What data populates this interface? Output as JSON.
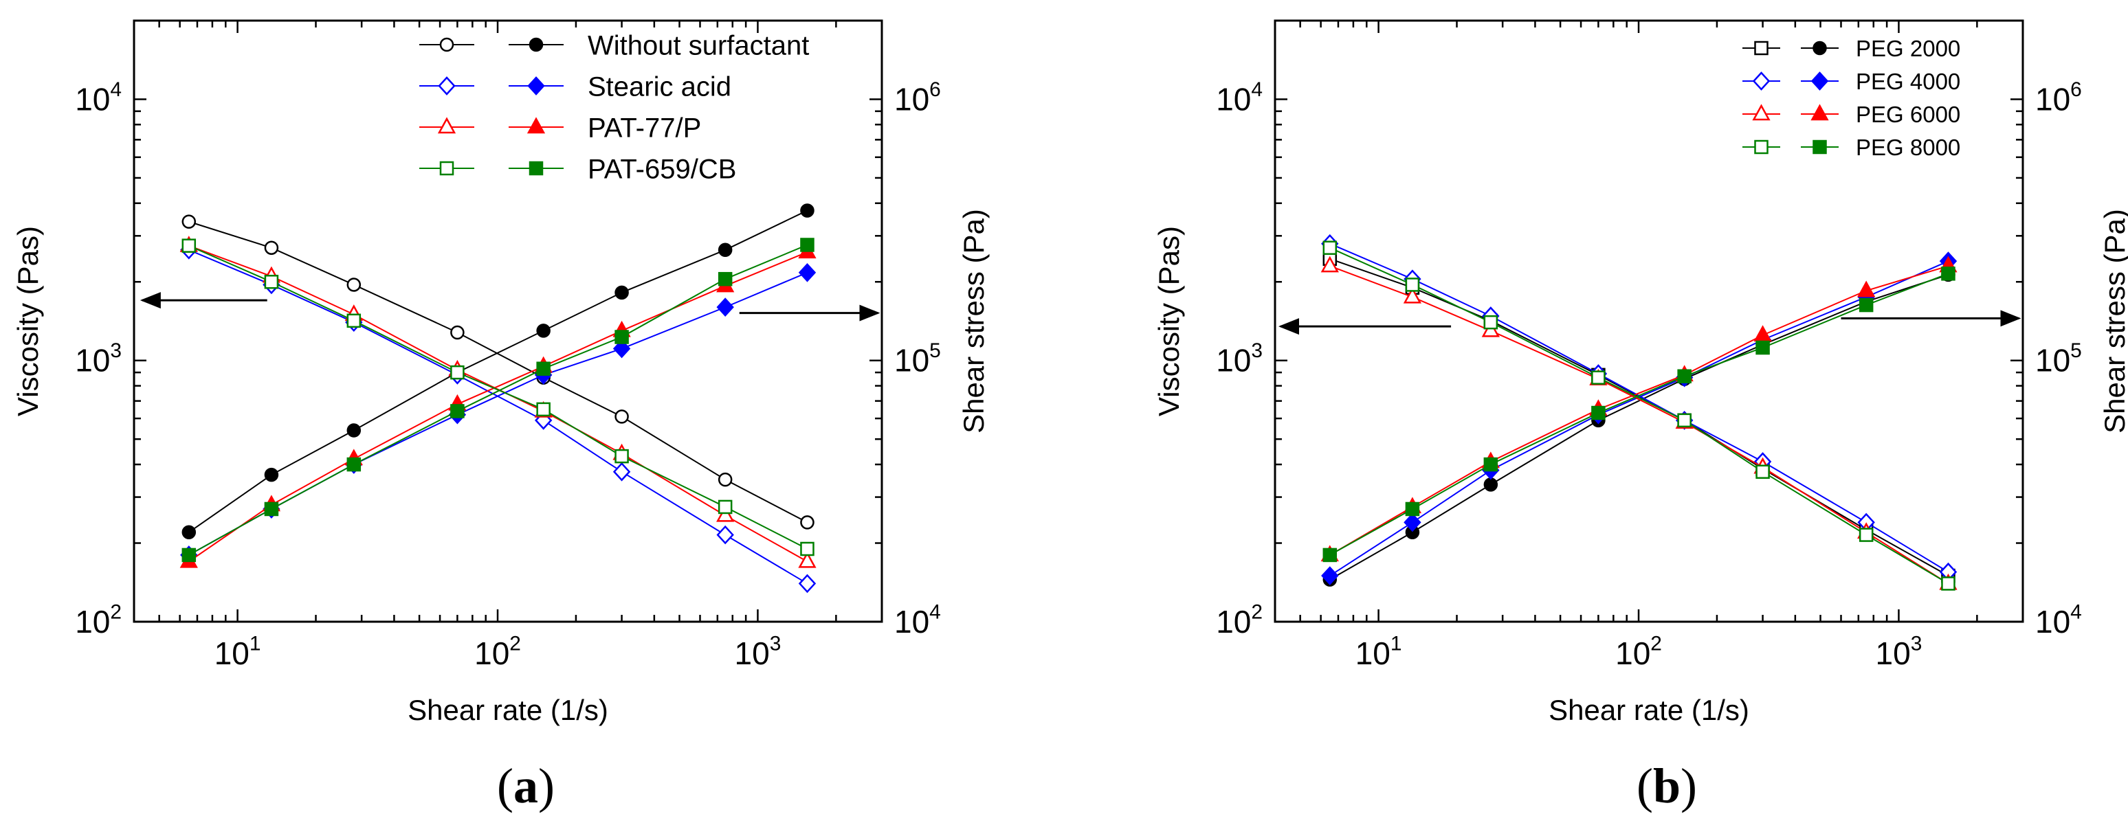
{
  "figure": {
    "panel_labels": [
      {
        "open": "(",
        "letter": "a",
        "close": ")"
      },
      {
        "open": "(",
        "letter": "b",
        "close": ")"
      }
    ]
  },
  "chart_data": [
    {
      "type": "line",
      "panel": "a",
      "xlabel": "Shear rate (1/s)",
      "ylabel": "Viscosity (Pas)",
      "y2label": "Shear stress (Pa)",
      "xscale": "log",
      "yscale": "log",
      "y2scale": "log",
      "xlim": [
        4,
        3000
      ],
      "ylim": [
        100,
        20000
      ],
      "y2lim": [
        10000,
        2000000
      ],
      "xticks": [
        {
          "value": 10,
          "base": "10",
          "exp": "1"
        },
        {
          "value": 100,
          "base": "10",
          "exp": "2"
        },
        {
          "value": 1000,
          "base": "10",
          "exp": "3"
        }
      ],
      "yticks": [
        {
          "value": 100,
          "base": "10",
          "exp": "2"
        },
        {
          "value": 1000,
          "base": "10",
          "exp": "3"
        },
        {
          "value": 10000,
          "base": "10",
          "exp": "4"
        }
      ],
      "y2ticks": [
        {
          "value": 10000,
          "base": "10",
          "exp": "4"
        },
        {
          "value": 100000,
          "base": "10",
          "exp": "5"
        },
        {
          "value": 1000000,
          "base": "10",
          "exp": "6"
        }
      ],
      "legend_position": "top-right",
      "annotations": [
        {
          "type": "arrow",
          "direction": "left",
          "meaning": "viscosity on left axis",
          "from": [
            13,
            1700
          ],
          "to": [
            4.3,
            1700
          ]
        },
        {
          "type": "arrow",
          "direction": "right",
          "meaning": "shear stress on right axis",
          "from": [
            850,
            1520
          ],
          "to": [
            2900,
            1520
          ]
        }
      ],
      "series": [
        {
          "name": "Without surfactant",
          "color": "#000000",
          "marker": "circle",
          "x": [
            6.5,
            13.5,
            28,
            70,
            150,
            300,
            750,
            1550
          ],
          "viscosity": [
            3400,
            2700,
            1950,
            1280,
            860,
            610,
            350,
            240
          ],
          "shear_stress": [
            22000,
            36500,
            54000,
            90000,
            130000,
            182000,
            265000,
            375000
          ]
        },
        {
          "name": "Stearic acid",
          "color": "#0000ff",
          "marker": "diamond",
          "x": [
            6.5,
            13.5,
            28,
            70,
            150,
            300,
            750,
            1550
          ],
          "viscosity": [
            2650,
            1950,
            1400,
            880,
            590,
            375,
            215,
            140
          ],
          "shear_stress": [
            18000,
            27000,
            40000,
            62000,
            88000,
            111000,
            160000,
            217000
          ]
        },
        {
          "name": "PAT-77/P",
          "color": "#ff0000",
          "marker": "triangle",
          "x": [
            6.5,
            13.5,
            28,
            70,
            150,
            300,
            750,
            1550
          ],
          "viscosity": [
            2750,
            2100,
            1500,
            920,
            640,
            440,
            255,
            170
          ],
          "shear_stress": [
            17000,
            28000,
            42000,
            68000,
            95000,
            130000,
            193000,
            260000
          ]
        },
        {
          "name": "PAT-659/CB",
          "color": "#008000",
          "marker": "square",
          "x": [
            6.5,
            13.5,
            28,
            70,
            150,
            300,
            750,
            1550
          ],
          "viscosity": [
            2750,
            2000,
            1420,
            900,
            650,
            430,
            275,
            190
          ],
          "shear_stress": [
            18000,
            27000,
            40000,
            64000,
            93000,
            123000,
            205000,
            277000
          ]
        }
      ]
    },
    {
      "type": "line",
      "panel": "b",
      "xlabel": "Shear rate (1/s)",
      "ylabel": "Viscosity (Pas)",
      "y2label": "Shear stress (Pa)",
      "xscale": "log",
      "yscale": "log",
      "y2scale": "log",
      "xlim": [
        4,
        3000
      ],
      "ylim": [
        100,
        20000
      ],
      "y2lim": [
        10000,
        2000000
      ],
      "xticks": [
        {
          "value": 10,
          "base": "10",
          "exp": "1"
        },
        {
          "value": 100,
          "base": "10",
          "exp": "2"
        },
        {
          "value": 1000,
          "base": "10",
          "exp": "3"
        }
      ],
      "yticks": [
        {
          "value": 100,
          "base": "10",
          "exp": "2"
        },
        {
          "value": 1000,
          "base": "10",
          "exp": "3"
        },
        {
          "value": 10000,
          "base": "10",
          "exp": "4"
        }
      ],
      "y2ticks": [
        {
          "value": 10000,
          "base": "10",
          "exp": "4"
        },
        {
          "value": 100000,
          "base": "10",
          "exp": "5"
        },
        {
          "value": 1000000,
          "base": "10",
          "exp": "6"
        }
      ],
      "legend_position": "top-right",
      "annotations": [
        {
          "type": "arrow",
          "direction": "left",
          "meaning": "viscosity on left axis",
          "from": [
            19,
            1350
          ],
          "to": [
            4.2,
            1350
          ]
        },
        {
          "type": "arrow",
          "direction": "right",
          "meaning": "shear stress on right axis",
          "from": [
            600,
            1450
          ],
          "to": [
            2900,
            1450
          ]
        }
      ],
      "series": [
        {
          "name": "PEG 2000",
          "color": "#000000",
          "marker": "square-open/circle-filled",
          "x": [
            6.5,
            13.5,
            27,
            70,
            150,
            300,
            750,
            1550
          ],
          "viscosity": [
            2450,
            1900,
            1420,
            880,
            590,
            385,
            225,
            150
          ],
          "shear_stress": [
            14500,
            22000,
            33500,
            59000,
            85000,
            115000,
            168000,
            213000
          ]
        },
        {
          "name": "PEG 4000",
          "color": "#0000ff",
          "marker": "diamond",
          "x": [
            6.5,
            13.5,
            27,
            70,
            150,
            300,
            750,
            1550
          ],
          "viscosity": [
            2800,
            2050,
            1480,
            890,
            590,
            410,
            240,
            155
          ],
          "shear_stress": [
            15000,
            24000,
            38000,
            62000,
            86000,
            120000,
            175000,
            240000
          ]
        },
        {
          "name": "PEG 6000",
          "color": "#ff0000",
          "marker": "triangle",
          "x": [
            6.5,
            13.5,
            27,
            70,
            150,
            300,
            750,
            1550
          ],
          "viscosity": [
            2300,
            1750,
            1300,
            850,
            580,
            390,
            220,
            140
          ],
          "shear_stress": [
            18000,
            27500,
            41000,
            65000,
            88000,
            125000,
            185000,
            230000
          ]
        },
        {
          "name": "PEG 8000",
          "color": "#008000",
          "marker": "square",
          "x": [
            6.5,
            13.5,
            27,
            70,
            150,
            300,
            750,
            1550
          ],
          "viscosity": [
            2700,
            1950,
            1400,
            860,
            590,
            375,
            215,
            140
          ],
          "shear_stress": [
            18000,
            27000,
            40000,
            63000,
            87000,
            112000,
            163000,
            215000
          ]
        }
      ]
    }
  ]
}
